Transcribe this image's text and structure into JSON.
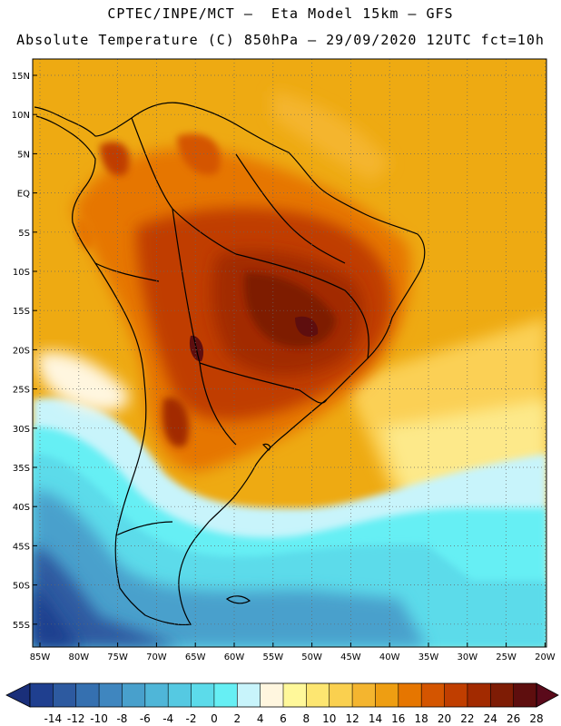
{
  "header": {
    "title_line1": "CPTEC/INPE/MCT –  Eta Model 15km – GFS",
    "title_line2": "Absolute Temperature (C) 850hPa – 29/09/2020 12UTC fct=10h"
  },
  "axes": {
    "lat_labels": [
      "15N",
      "10N",
      "5N",
      "EQ",
      "5S",
      "10S",
      "15S",
      "20S",
      "25S",
      "30S",
      "35S",
      "40S",
      "45S",
      "50S",
      "55S"
    ],
    "lon_labels": [
      "85W",
      "80W",
      "75W",
      "70W",
      "65W",
      "60W",
      "55W",
      "50W",
      "45W",
      "40W",
      "35W",
      "30W",
      "25W",
      "20W"
    ]
  },
  "colorbar": {
    "labels": [
      "-14",
      "-12",
      "-10",
      "-8",
      "-6",
      "-4",
      "-2",
      "0",
      "2",
      "4",
      "6",
      "8",
      "10",
      "12",
      "14",
      "16",
      "18",
      "20",
      "22",
      "24",
      "26",
      "28"
    ],
    "colors": [
      "#1f3f8f",
      "#2d5aa0",
      "#3570b0",
      "#3f86bf",
      "#48a0cc",
      "#4fb6d8",
      "#55c9e2",
      "#5cdbea",
      "#66eff4",
      "#c8f4fb",
      "#fff6df",
      "#fff89a",
      "#fde671",
      "#fad04f",
      "#f4b52f",
      "#ee9e12",
      "#e67600",
      "#d45500",
      "#c03e00",
      "#a22a00",
      "#7e1c05",
      "#5e0e0e"
    ],
    "low_arrow": "#1a2f7a",
    "high_arrow": "#5a0a1a"
  },
  "map": {
    "background": "#eeaa12"
  }
}
